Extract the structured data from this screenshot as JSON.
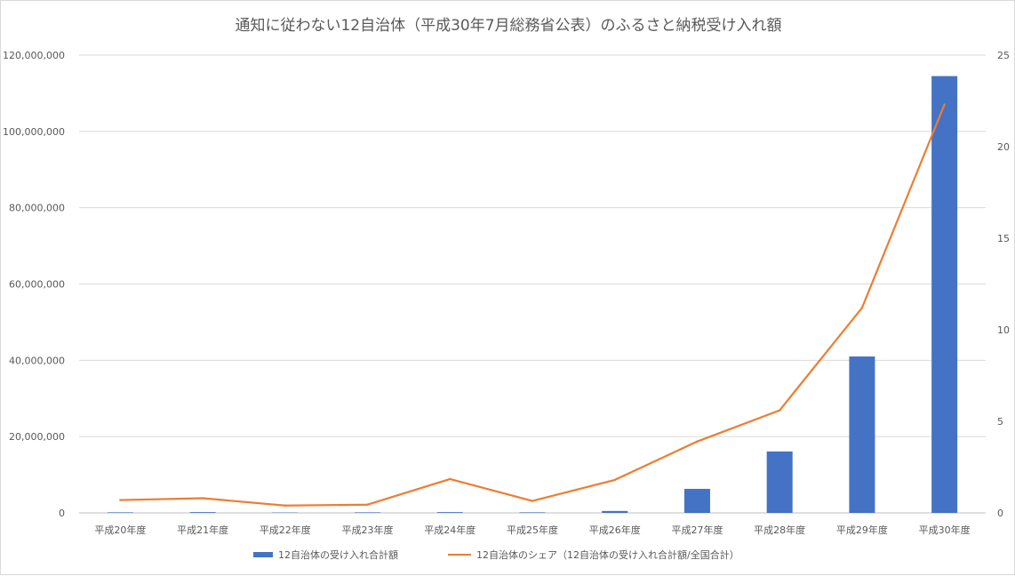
{
  "chart_data": {
    "type": "bar",
    "title": "通知に従わない12自治体（平成30年7月総務省公表）のふるさと納税受け入れ額",
    "categories": [
      "平成20年度",
      "平成21年度",
      "平成22年度",
      "平成23年度",
      "平成24年度",
      "平成25年度",
      "平成26年度",
      "平成27年度",
      "平成28年度",
      "平成29年度",
      "平成30年度"
    ],
    "series": [
      {
        "name": "12自治体の受け入れ合計額",
        "type": "bar",
        "axis": "left",
        "color": "#4472c4",
        "values": [
          150000,
          200000,
          100000,
          150000,
          200000,
          150000,
          500000,
          6300000,
          16100000,
          41000000,
          114500000
        ]
      },
      {
        "name": "12自治体のシェア（12自治体の受け入れ合計額/全国合計）",
        "type": "line",
        "axis": "right",
        "color": "#ed7d31",
        "values": [
          0.7,
          0.8,
          0.4,
          0.45,
          1.85,
          0.65,
          1.8,
          3.9,
          5.6,
          11.2,
          22.3
        ]
      }
    ],
    "y_left": {
      "lim": [
        0,
        120000000
      ],
      "ticks": [
        0,
        20000000,
        40000000,
        60000000,
        80000000,
        100000000,
        120000000
      ],
      "tick_labels": [
        "0",
        "20,000,000",
        "40,000,000",
        "60,000,000",
        "80,000,000",
        "100,000,000",
        "120,000,000"
      ]
    },
    "y_right": {
      "lim": [
        0,
        25
      ],
      "ticks": [
        0,
        5,
        10,
        15,
        20,
        25
      ],
      "tick_labels": [
        "0",
        "5",
        "10",
        "15",
        "20",
        "25"
      ]
    },
    "grid": true,
    "legend_position": "bottom"
  }
}
